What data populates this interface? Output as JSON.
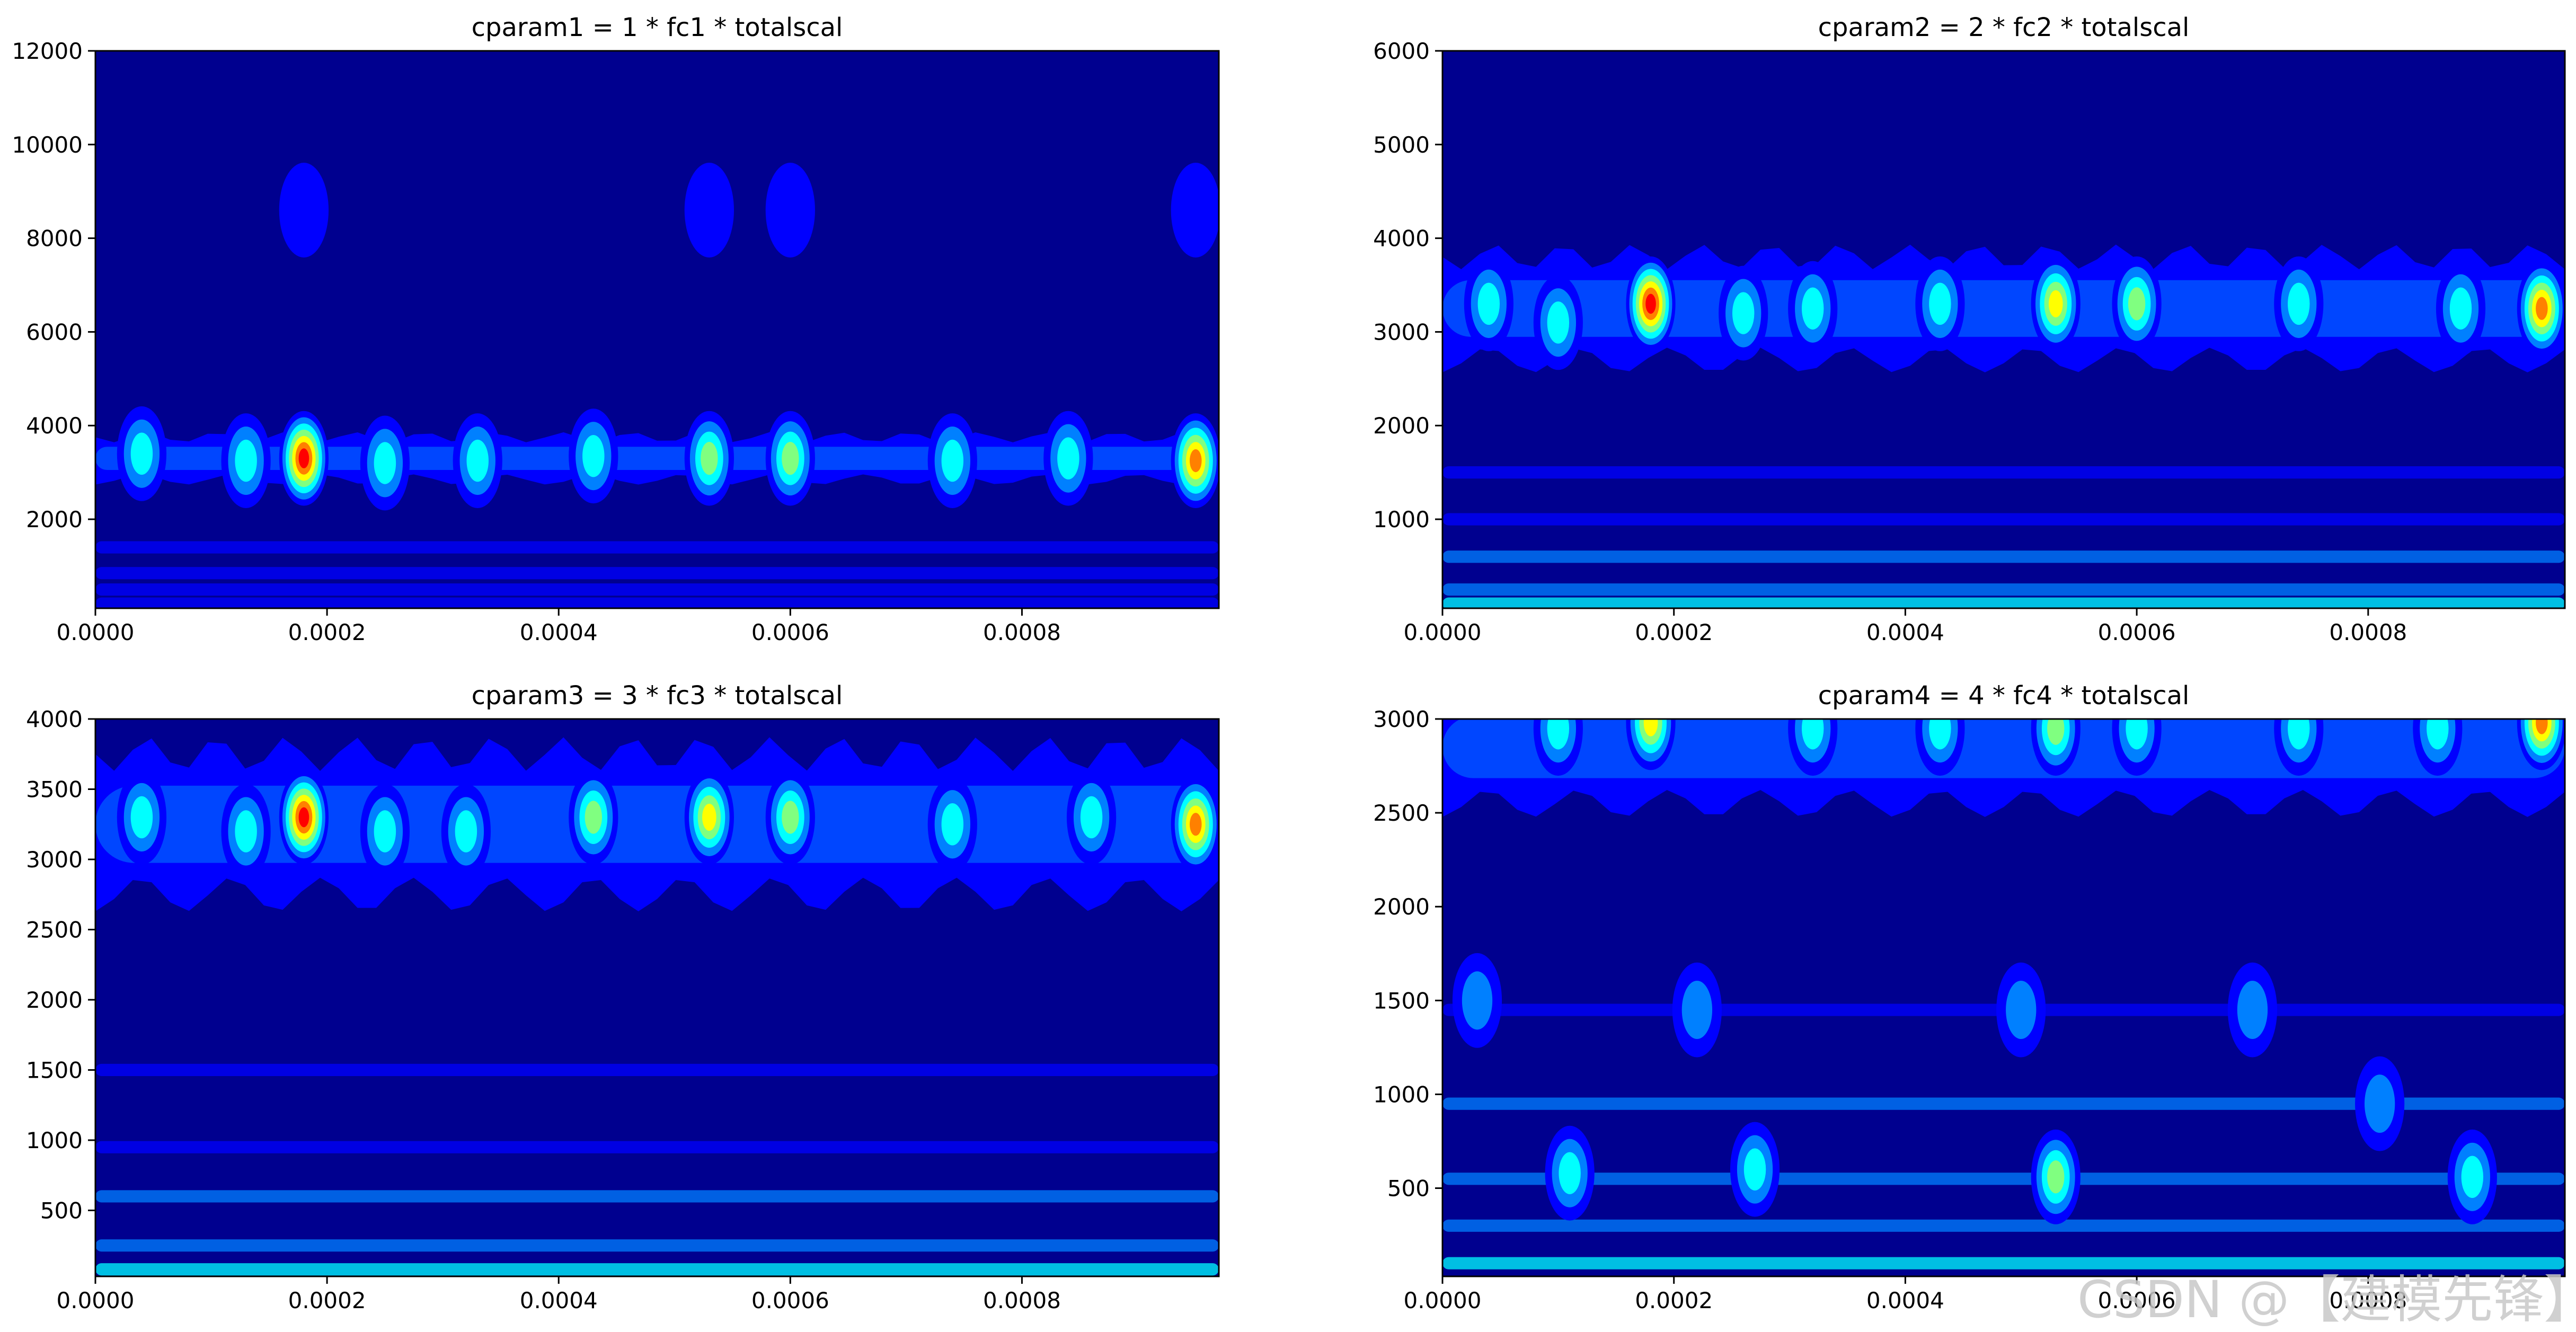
{
  "watermark": "CSDN @【建模先锋】",
  "colormap": [
    "#00008f",
    "#0000ff",
    "#0080ff",
    "#00ffff",
    "#80ff80",
    "#ffff00",
    "#ff8000",
    "#ff0000",
    "#800000"
  ],
  "chart_data": [
    {
      "type": "heatmap",
      "title": "cparam1 = 1 * fc1 * totalscal",
      "xlabel": "",
      "ylabel": "",
      "xlim": [
        0,
        0.00097
      ],
      "ylim": [
        100,
        12000
      ],
      "xticks": [
        "0.0000",
        "0.0002",
        "0.0004",
        "0.0006",
        "0.0008"
      ],
      "xtick_values": [
        0,
        0.0002,
        0.0004,
        0.0006,
        0.0008
      ],
      "yticks": [
        "2000",
        "4000",
        "6000",
        "8000",
        "10000",
        "12000"
      ],
      "ytick_values": [
        2000,
        4000,
        6000,
        8000,
        10000,
        12000
      ],
      "main_band": {
        "y_center": 3300,
        "y_halfwidth": 450,
        "level": 2
      },
      "hotspots": [
        {
          "x": 0.00018,
          "y": 3300,
          "level": 7
        },
        {
          "x": 0.00053,
          "y": 3300,
          "level": 4
        },
        {
          "x": 0.0006,
          "y": 3300,
          "level": 4
        },
        {
          "x": 0.00095,
          "y": 3250,
          "level": 6
        },
        {
          "x": 0.00043,
          "y": 3350,
          "level": 3
        },
        {
          "x": 0.00013,
          "y": 3250,
          "level": 3
        },
        {
          "x": 0.00033,
          "y": 3250,
          "level": 3
        },
        {
          "x": 0.00074,
          "y": 3250,
          "level": 3
        },
        {
          "x": 4e-05,
          "y": 3400,
          "level": 3
        },
        {
          "x": 0.00025,
          "y": 3200,
          "level": 3
        },
        {
          "x": 0.00084,
          "y": 3300,
          "level": 3
        },
        {
          "x": 0.00018,
          "y": 8600,
          "level": 1
        },
        {
          "x": 0.00053,
          "y": 8600,
          "level": 1
        },
        {
          "x": 0.00095,
          "y": 8600,
          "level": 1
        },
        {
          "x": 0.0006,
          "y": 8600,
          "level": 1
        }
      ],
      "faint_bands": [
        {
          "y": 1400,
          "level": 1
        },
        {
          "y": 850,
          "level": 1
        },
        {
          "y": 500,
          "level": 1
        },
        {
          "y": 200,
          "level": 1
        }
      ]
    },
    {
      "type": "heatmap",
      "title": "cparam2 = 2 * fc2 * totalscal",
      "xlabel": "",
      "ylabel": "",
      "xlim": [
        0,
        0.00097
      ],
      "ylim": [
        50,
        6000
      ],
      "xticks": [
        "0.0000",
        "0.0002",
        "0.0004",
        "0.0006",
        "0.0008"
      ],
      "xtick_values": [
        0,
        0.0002,
        0.0004,
        0.0006,
        0.0008
      ],
      "yticks": [
        "1000",
        "2000",
        "3000",
        "4000",
        "5000",
        "6000"
      ],
      "ytick_values": [
        1000,
        2000,
        3000,
        4000,
        5000,
        6000
      ],
      "main_band": {
        "y_center": 3250,
        "y_halfwidth": 550,
        "level": 2
      },
      "hotspots": [
        {
          "x": 0.00018,
          "y": 3300,
          "level": 7
        },
        {
          "x": 0.00053,
          "y": 3300,
          "level": 5
        },
        {
          "x": 0.0006,
          "y": 3300,
          "level": 4
        },
        {
          "x": 0.00095,
          "y": 3250,
          "level": 6
        },
        {
          "x": 0.00043,
          "y": 3300,
          "level": 3
        },
        {
          "x": 0.00032,
          "y": 3250,
          "level": 3
        },
        {
          "x": 0.00074,
          "y": 3300,
          "level": 3
        },
        {
          "x": 4e-05,
          "y": 3300,
          "level": 3
        },
        {
          "x": 0.0001,
          "y": 3100,
          "level": 3
        },
        {
          "x": 0.00026,
          "y": 3200,
          "level": 3
        },
        {
          "x": 0.00088,
          "y": 3250,
          "level": 3
        }
      ],
      "faint_bands": [
        {
          "y": 1500,
          "level": 1
        },
        {
          "y": 1000,
          "level": 1
        },
        {
          "y": 600,
          "level": 2
        },
        {
          "y": 250,
          "level": 2
        },
        {
          "y": 100,
          "level": 3
        }
      ]
    },
    {
      "type": "heatmap",
      "title": "cparam3 = 3 * fc3 * totalscal",
      "xlabel": "",
      "ylabel": "",
      "xlim": [
        0,
        0.00097
      ],
      "ylim": [
        30,
        4000
      ],
      "xticks": [
        "0.0000",
        "0.0002",
        "0.0004",
        "0.0006",
        "0.0008"
      ],
      "xtick_values": [
        0,
        0.0002,
        0.0004,
        0.0006,
        0.0008
      ],
      "yticks": [
        "500",
        "1000",
        "1500",
        "2000",
        "2500",
        "3000",
        "3500",
        "4000"
      ],
      "ytick_values": [
        500,
        1000,
        1500,
        2000,
        2500,
        3000,
        3500,
        4000
      ],
      "main_band": {
        "y_center": 3250,
        "y_halfwidth": 500,
        "level": 2
      },
      "hotspots": [
        {
          "x": 0.00018,
          "y": 3300,
          "level": 7
        },
        {
          "x": 0.00053,
          "y": 3300,
          "level": 5
        },
        {
          "x": 0.0006,
          "y": 3300,
          "level": 4
        },
        {
          "x": 0.00095,
          "y": 3250,
          "level": 6
        },
        {
          "x": 0.00043,
          "y": 3300,
          "level": 4
        },
        {
          "x": 0.00032,
          "y": 3200,
          "level": 3
        },
        {
          "x": 0.00074,
          "y": 3250,
          "level": 3
        },
        {
          "x": 4e-05,
          "y": 3300,
          "level": 3
        },
        {
          "x": 0.00013,
          "y": 3200,
          "level": 3
        },
        {
          "x": 0.00025,
          "y": 3200,
          "level": 3
        },
        {
          "x": 0.00086,
          "y": 3300,
          "level": 3
        }
      ],
      "faint_bands": [
        {
          "y": 1500,
          "level": 1
        },
        {
          "y": 950,
          "level": 1
        },
        {
          "y": 600,
          "level": 2
        },
        {
          "y": 250,
          "level": 2
        },
        {
          "y": 80,
          "level": 3
        }
      ]
    },
    {
      "type": "heatmap",
      "title": "cparam4 = 4 * fc4 * totalscal",
      "xlabel": "",
      "ylabel": "",
      "xlim": [
        0,
        0.00097
      ],
      "ylim": [
        30,
        3000
      ],
      "xticks": [
        "0.0000",
        "0.0002",
        "0.0004",
        "0.0006",
        "0.0008"
      ],
      "xtick_values": [
        0,
        0.0002,
        0.0004,
        0.0006,
        0.0008
      ],
      "yticks": [
        "500",
        "1000",
        "1500",
        "2000",
        "2500",
        "3000"
      ],
      "ytick_values": [
        500,
        1000,
        1500,
        2000,
        2500,
        3000
      ],
      "main_band": {
        "y_center": 2850,
        "y_halfwidth": 300,
        "level": 2
      },
      "hotspots": [
        {
          "x": 0.00018,
          "y": 2980,
          "level": 5
        },
        {
          "x": 0.00053,
          "y": 2950,
          "level": 4
        },
        {
          "x": 0.0006,
          "y": 2950,
          "level": 3
        },
        {
          "x": 0.00095,
          "y": 2980,
          "level": 6
        },
        {
          "x": 0.0001,
          "y": 2950,
          "level": 3
        },
        {
          "x": 0.00032,
          "y": 2950,
          "level": 3
        },
        {
          "x": 0.00043,
          "y": 2950,
          "level": 3
        },
        {
          "x": 0.00074,
          "y": 2950,
          "level": 3
        },
        {
          "x": 0.00086,
          "y": 2950,
          "level": 3
        },
        {
          "x": 0.00011,
          "y": 580,
          "level": 3
        },
        {
          "x": 0.00027,
          "y": 600,
          "level": 3
        },
        {
          "x": 0.00053,
          "y": 560,
          "level": 4
        },
        {
          "x": 0.00089,
          "y": 560,
          "level": 3
        },
        {
          "x": 3e-05,
          "y": 1500,
          "level": 2
        },
        {
          "x": 0.00022,
          "y": 1450,
          "level": 2
        },
        {
          "x": 0.0005,
          "y": 1450,
          "level": 2
        },
        {
          "x": 0.0007,
          "y": 1450,
          "level": 2
        },
        {
          "x": 0.00081,
          "y": 950,
          "level": 2
        }
      ],
      "faint_bands": [
        {
          "y": 1450,
          "level": 1
        },
        {
          "y": 950,
          "level": 2
        },
        {
          "y": 550,
          "level": 2
        },
        {
          "y": 300,
          "level": 2
        },
        {
          "y": 100,
          "level": 3
        }
      ]
    }
  ]
}
